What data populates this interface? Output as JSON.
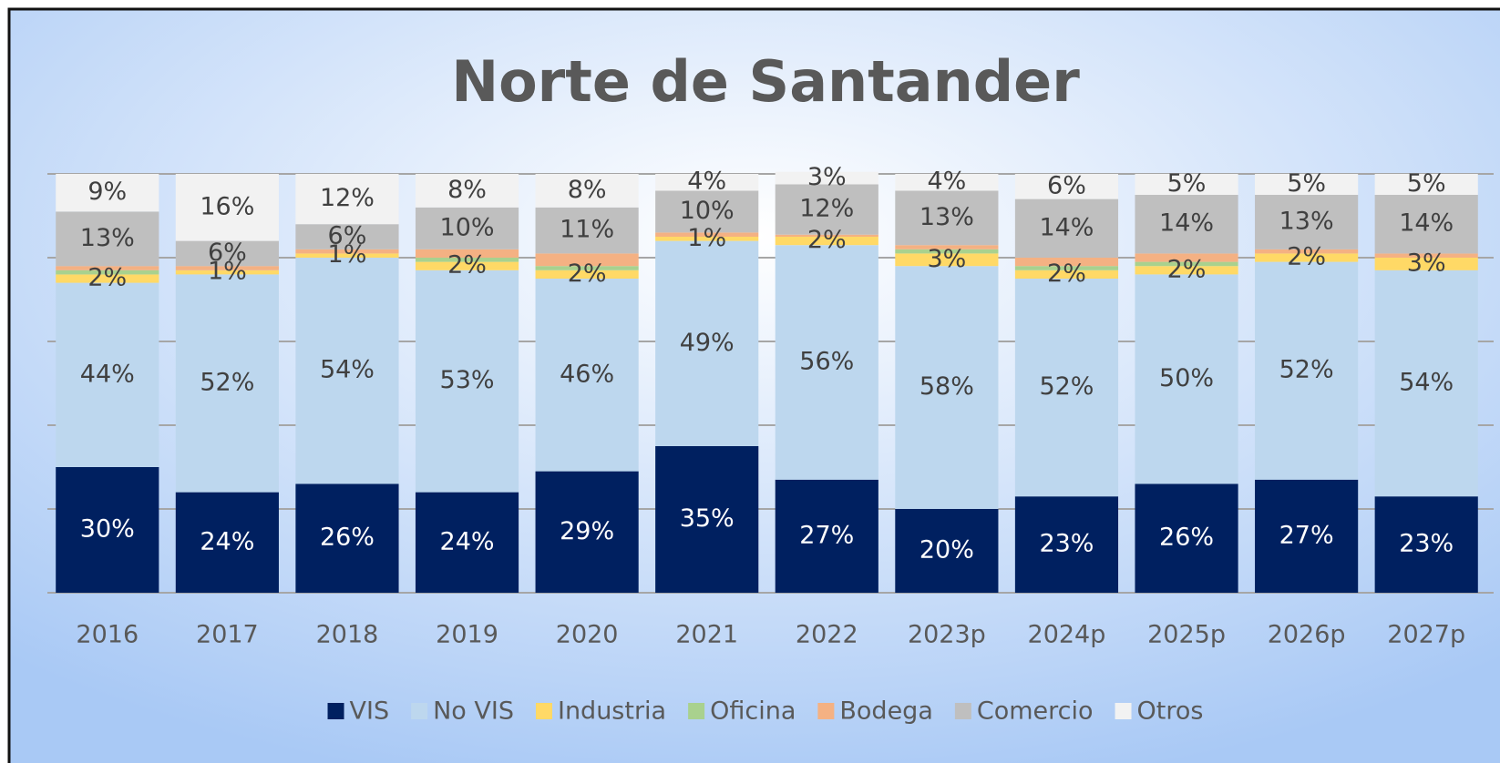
{
  "chart_data": {
    "type": "stacked_bar",
    "title": "Norte de Santander",
    "categories": [
      "2016",
      "2017",
      "2018",
      "2019",
      "2020",
      "2021",
      "2022",
      "2023p",
      "2024p",
      "2025p",
      "2026p",
      "2027p"
    ],
    "ylim": [
      0,
      100
    ],
    "yticks": [
      0,
      20,
      40,
      60,
      80,
      100
    ],
    "grid": true,
    "legend": "bottom",
    "series": [
      {
        "name": "VIS",
        "color": "#002060",
        "values": [
          30,
          24,
          26,
          24,
          29,
          35,
          27,
          20,
          23,
          26,
          27,
          23
        ],
        "value_labels": [
          "30%",
          "24%",
          "26%",
          "24%",
          "29%",
          "35%",
          "27%",
          "20%",
          "23%",
          "26%",
          "27%",
          "23%"
        ]
      },
      {
        "name": "No VIS",
        "color": "#bdd7ee",
        "values": [
          44,
          52,
          54,
          53,
          46,
          49,
          56,
          58,
          52,
          50,
          52,
          54
        ],
        "value_labels": [
          "44%",
          "52%",
          "54%",
          "53%",
          "46%",
          "49%",
          "56%",
          "58%",
          "52%",
          "50%",
          "52%",
          "54%"
        ]
      },
      {
        "name": "Industria",
        "color": "#ffd966",
        "values": [
          2,
          1,
          1,
          2,
          2,
          1,
          2,
          3,
          2,
          2,
          2,
          3
        ],
        "value_labels": [
          "2%",
          "1%",
          "1%",
          "2%",
          "2%",
          "1%",
          "2%",
          "3%",
          "2%",
          "2%",
          "2%",
          "3%"
        ]
      },
      {
        "name": "Oficina",
        "color": "#a9d18e",
        "values": [
          1,
          0,
          0,
          1,
          1,
          0,
          0,
          1,
          1,
          1,
          0,
          0
        ],
        "value_labels": [
          null,
          null,
          null,
          null,
          null,
          null,
          null,
          null,
          null,
          null,
          null,
          null
        ]
      },
      {
        "name": "Bodega",
        "color": "#f4b183",
        "values": [
          1,
          1,
          1,
          2,
          3,
          1,
          0.5,
          1,
          2,
          2,
          1,
          1
        ],
        "value_labels": [
          null,
          null,
          null,
          null,
          null,
          null,
          null,
          null,
          null,
          null,
          null,
          null
        ]
      },
      {
        "name": "Comercio",
        "color": "#bfbfbf",
        "values": [
          13,
          6,
          6,
          10,
          11,
          10,
          12,
          13,
          14,
          14,
          13,
          14
        ],
        "value_labels": [
          "13%",
          "6%",
          "6%",
          "10%",
          "11%",
          "10%",
          "12%",
          "13%",
          "14%",
          "14%",
          "13%",
          "14%"
        ]
      },
      {
        "name": "Otros",
        "color": "#f2f2f2",
        "values": [
          9,
          16,
          12,
          8,
          8,
          4,
          3,
          4,
          6,
          5,
          5,
          5
        ],
        "value_labels": [
          "9%",
          "16%",
          "12%",
          "8%",
          "8%",
          "4%",
          "3%",
          "4%",
          "6%",
          "5%",
          "5%",
          "5%"
        ]
      }
    ]
  }
}
